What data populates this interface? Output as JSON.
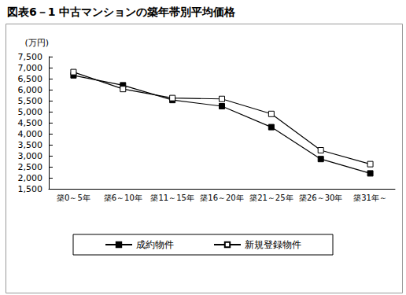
{
  "chart_data": {
    "type": "line",
    "title": "図表6－1 中古マンションの築年帯別平均価格",
    "y_label": "(万円)",
    "categories": [
      "築0～5年",
      "築6～10年",
      "築11～15年",
      "築16～20年",
      "築21～25年",
      "築26～30年",
      "築31年～"
    ],
    "series": [
      {
        "name": "成約物件",
        "color": "#000000",
        "marker": "filled_square",
        "values": [
          6650,
          6200,
          5530,
          5250,
          4300,
          2850,
          2200
        ]
      },
      {
        "name": "新規登録物件",
        "color": "#000000",
        "marker": "open_square",
        "values": [
          6800,
          6030,
          5620,
          5580,
          4900,
          3250,
          2620
        ]
      }
    ],
    "ylim": [
      1500,
      7500
    ],
    "yticks": [
      {
        "value": 1500,
        "label": "1,500"
      },
      {
        "value": 2000,
        "label": "2,000"
      },
      {
        "value": 2500,
        "label": "2,500"
      },
      {
        "value": 3000,
        "label": "3,000"
      },
      {
        "value": 3500,
        "label": "3,500"
      },
      {
        "value": 4000,
        "label": "4,000"
      },
      {
        "value": 4500,
        "label": "4,500"
      },
      {
        "value": 5000,
        "label": "5,000"
      },
      {
        "value": 5500,
        "label": "5,500"
      },
      {
        "value": 6000,
        "label": "6,000"
      },
      {
        "value": 6500,
        "label": "6,500"
      },
      {
        "value": 7000,
        "label": "7,000"
      },
      {
        "value": 7500,
        "label": "7,500"
      }
    ],
    "grid": false,
    "legend": "bottom"
  }
}
